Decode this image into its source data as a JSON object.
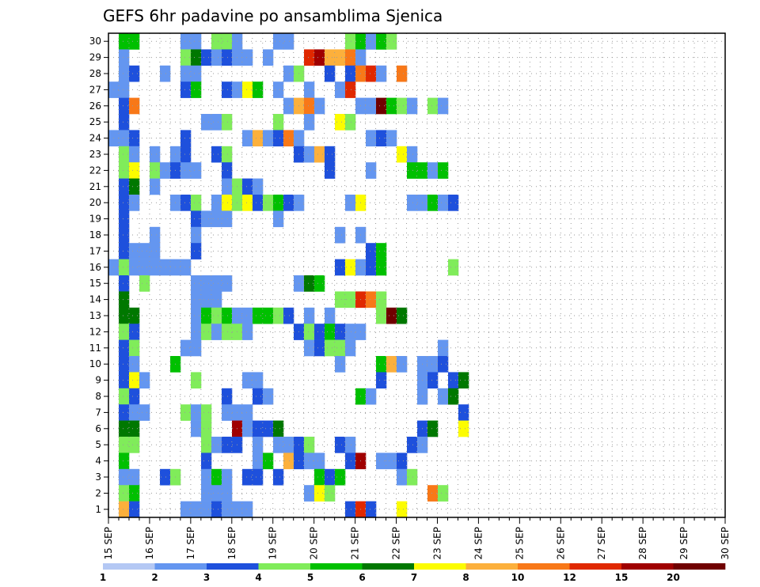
{
  "chart_data": {
    "type": "heatmap",
    "title": "GEFS 6hr padavine po ansamblima Sjenica",
    "xlabel": "",
    "ylabel": "",
    "x_tick_labels": [
      "15 SEP",
      "16 SEP",
      "17 SEP",
      "18 SEP",
      "19 SEP",
      "20 SEP",
      "21 SEP",
      "22 SEP",
      "23 SEP",
      "24 SEP",
      "25 SEP",
      "26 SEP",
      "27 SEP",
      "28 SEP",
      "29 SEP",
      "30 SEP"
    ],
    "y_tick_labels": [
      "1",
      "2",
      "3",
      "4",
      "5",
      "6",
      "7",
      "8",
      "9",
      "10",
      "11",
      "12",
      "13",
      "14",
      "15",
      "16",
      "17",
      "18",
      "19",
      "20",
      "21",
      "22",
      "23",
      "24",
      "25",
      "26",
      "27",
      "28",
      "29",
      "30"
    ],
    "xlim": [
      0,
      60
    ],
    "ylim": [
      0.5,
      30.5
    ],
    "grid": true,
    "colorbar": {
      "levels": [
        "1",
        "2",
        "3",
        "4",
        "5",
        "6",
        "7",
        "8",
        "10",
        "12",
        "15",
        "20"
      ],
      "colors": [
        "#b4c8f4",
        "#6496f0",
        "#1e50dc",
        "#80ec5a",
        "#00c000",
        "#007800",
        "#fcfc00",
        "#fcb03c",
        "#f87818",
        "#e02800",
        "#a00000",
        "#700000"
      ]
    },
    "value_unit": "color class index (0=1-2 ... 11=>20)",
    "cells": [
      [
        1,
        30,
        4
      ],
      [
        2,
        30,
        4
      ],
      [
        7,
        30,
        1
      ],
      [
        8,
        30,
        1
      ],
      [
        10,
        30,
        3
      ],
      [
        11,
        30,
        3
      ],
      [
        12,
        30,
        1
      ],
      [
        16,
        30,
        1
      ],
      [
        17,
        30,
        1
      ],
      [
        23,
        30,
        3
      ],
      [
        24,
        30,
        4
      ],
      [
        25,
        30,
        1
      ],
      [
        26,
        30,
        4
      ],
      [
        27,
        30,
        3
      ],
      [
        1,
        29,
        1
      ],
      [
        7,
        29,
        3
      ],
      [
        8,
        29,
        5
      ],
      [
        9,
        29,
        2
      ],
      [
        10,
        29,
        1
      ],
      [
        11,
        29,
        2
      ],
      [
        12,
        29,
        1
      ],
      [
        13,
        29,
        1
      ],
      [
        15,
        29,
        1
      ],
      [
        19,
        29,
        9
      ],
      [
        20,
        29,
        10
      ],
      [
        21,
        29,
        7
      ],
      [
        22,
        29,
        7
      ],
      [
        23,
        29,
        8
      ],
      [
        24,
        29,
        1
      ],
      [
        1,
        28,
        1
      ],
      [
        2,
        28,
        2
      ],
      [
        5,
        28,
        1
      ],
      [
        7,
        28,
        1
      ],
      [
        8,
        28,
        1
      ],
      [
        17,
        28,
        1
      ],
      [
        18,
        28,
        3
      ],
      [
        21,
        28,
        2
      ],
      [
        23,
        28,
        2
      ],
      [
        24,
        28,
        8
      ],
      [
        25,
        28,
        9
      ],
      [
        26,
        28,
        1
      ],
      [
        28,
        28,
        8
      ],
      [
        0,
        27,
        1
      ],
      [
        1,
        27,
        1
      ],
      [
        7,
        27,
        2
      ],
      [
        8,
        27,
        4
      ],
      [
        11,
        27,
        2
      ],
      [
        12,
        27,
        1
      ],
      [
        13,
        27,
        6
      ],
      [
        14,
        27,
        4
      ],
      [
        16,
        27,
        1
      ],
      [
        19,
        27,
        1
      ],
      [
        22,
        27,
        1
      ],
      [
        23,
        27,
        9
      ],
      [
        1,
        26,
        2
      ],
      [
        2,
        26,
        8
      ],
      [
        17,
        26,
        1
      ],
      [
        18,
        26,
        7
      ],
      [
        19,
        26,
        8
      ],
      [
        20,
        26,
        1
      ],
      [
        24,
        26,
        1
      ],
      [
        25,
        26,
        1
      ],
      [
        26,
        26,
        11
      ],
      [
        27,
        26,
        4
      ],
      [
        28,
        26,
        3
      ],
      [
        29,
        26,
        1
      ],
      [
        31,
        26,
        3
      ],
      [
        32,
        26,
        1
      ],
      [
        1,
        25,
        2
      ],
      [
        9,
        25,
        1
      ],
      [
        10,
        25,
        1
      ],
      [
        11,
        25,
        3
      ],
      [
        16,
        25,
        3
      ],
      [
        19,
        25,
        1
      ],
      [
        22,
        25,
        6
      ],
      [
        23,
        25,
        3
      ],
      [
        0,
        24,
        1
      ],
      [
        1,
        24,
        1
      ],
      [
        2,
        24,
        2
      ],
      [
        7,
        24,
        2
      ],
      [
        13,
        24,
        1
      ],
      [
        14,
        24,
        7
      ],
      [
        15,
        24,
        1
      ],
      [
        16,
        24,
        2
      ],
      [
        17,
        24,
        8
      ],
      [
        18,
        24,
        1
      ],
      [
        25,
        24,
        1
      ],
      [
        26,
        24,
        2
      ],
      [
        27,
        24,
        1
      ],
      [
        1,
        23,
        3
      ],
      [
        2,
        23,
        1
      ],
      [
        4,
        23,
        1
      ],
      [
        6,
        23,
        1
      ],
      [
        7,
        23,
        2
      ],
      [
        10,
        23,
        2
      ],
      [
        11,
        23,
        3
      ],
      [
        18,
        23,
        2
      ],
      [
        19,
        23,
        1
      ],
      [
        20,
        23,
        7
      ],
      [
        21,
        23,
        2
      ],
      [
        28,
        23,
        6
      ],
      [
        29,
        23,
        1
      ],
      [
        1,
        22,
        3
      ],
      [
        2,
        22,
        6
      ],
      [
        4,
        22,
        3
      ],
      [
        5,
        22,
        1
      ],
      [
        6,
        22,
        2
      ],
      [
        7,
        22,
        1
      ],
      [
        8,
        22,
        1
      ],
      [
        11,
        22,
        2
      ],
      [
        21,
        22,
        2
      ],
      [
        25,
        22,
        1
      ],
      [
        29,
        22,
        4
      ],
      [
        30,
        22,
        4
      ],
      [
        31,
        22,
        1
      ],
      [
        32,
        22,
        4
      ],
      [
        1,
        21,
        2
      ],
      [
        2,
        21,
        5
      ],
      [
        4,
        21,
        1
      ],
      [
        11,
        21,
        1
      ],
      [
        12,
        21,
        3
      ],
      [
        13,
        21,
        2
      ],
      [
        14,
        21,
        1
      ],
      [
        1,
        20,
        2
      ],
      [
        2,
        20,
        1
      ],
      [
        6,
        20,
        1
      ],
      [
        7,
        20,
        2
      ],
      [
        8,
        20,
        3
      ],
      [
        10,
        20,
        1
      ],
      [
        11,
        20,
        6
      ],
      [
        12,
        20,
        3
      ],
      [
        13,
        20,
        6
      ],
      [
        14,
        20,
        2
      ],
      [
        15,
        20,
        3
      ],
      [
        16,
        20,
        4
      ],
      [
        17,
        20,
        2
      ],
      [
        18,
        20,
        1
      ],
      [
        23,
        20,
        1
      ],
      [
        24,
        20,
        6
      ],
      [
        29,
        20,
        1
      ],
      [
        30,
        20,
        1
      ],
      [
        31,
        20,
        4
      ],
      [
        32,
        20,
        1
      ],
      [
        33,
        20,
        2
      ],
      [
        1,
        19,
        2
      ],
      [
        8,
        19,
        2
      ],
      [
        9,
        19,
        1
      ],
      [
        10,
        19,
        1
      ],
      [
        11,
        19,
        1
      ],
      [
        16,
        19,
        1
      ],
      [
        1,
        18,
        2
      ],
      [
        4,
        18,
        1
      ],
      [
        8,
        18,
        1
      ],
      [
        22,
        18,
        1
      ],
      [
        24,
        18,
        1
      ],
      [
        1,
        17,
        2
      ],
      [
        2,
        17,
        1
      ],
      [
        3,
        17,
        1
      ],
      [
        4,
        17,
        1
      ],
      [
        8,
        17,
        2
      ],
      [
        25,
        17,
        2
      ],
      [
        26,
        17,
        4
      ],
      [
        0,
        16,
        1
      ],
      [
        1,
        16,
        3
      ],
      [
        2,
        16,
        1
      ],
      [
        3,
        16,
        1
      ],
      [
        4,
        16,
        1
      ],
      [
        5,
        16,
        1
      ],
      [
        6,
        16,
        1
      ],
      [
        7,
        16,
        1
      ],
      [
        22,
        16,
        2
      ],
      [
        23,
        16,
        6
      ],
      [
        24,
        16,
        1
      ],
      [
        25,
        16,
        2
      ],
      [
        26,
        16,
        4
      ],
      [
        33,
        16,
        3
      ],
      [
        1,
        15,
        2
      ],
      [
        3,
        15,
        3
      ],
      [
        8,
        15,
        1
      ],
      [
        9,
        15,
        1
      ],
      [
        10,
        15,
        1
      ],
      [
        11,
        15,
        1
      ],
      [
        18,
        15,
        1
      ],
      [
        19,
        15,
        5
      ],
      [
        20,
        15,
        4
      ],
      [
        1,
        14,
        5
      ],
      [
        8,
        14,
        1
      ],
      [
        9,
        14,
        1
      ],
      [
        10,
        14,
        1
      ],
      [
        22,
        14,
        3
      ],
      [
        23,
        14,
        3
      ],
      [
        24,
        14,
        9
      ],
      [
        25,
        14,
        8
      ],
      [
        26,
        14,
        3
      ],
      [
        1,
        13,
        5
      ],
      [
        2,
        13,
        5
      ],
      [
        8,
        13,
        1
      ],
      [
        9,
        13,
        4
      ],
      [
        10,
        13,
        3
      ],
      [
        11,
        13,
        4
      ],
      [
        12,
        13,
        1
      ],
      [
        13,
        13,
        1
      ],
      [
        14,
        13,
        4
      ],
      [
        15,
        13,
        4
      ],
      [
        16,
        13,
        3
      ],
      [
        17,
        13,
        2
      ],
      [
        19,
        13,
        1
      ],
      [
        21,
        13,
        1
      ],
      [
        26,
        13,
        3
      ],
      [
        27,
        13,
        11
      ],
      [
        28,
        13,
        5
      ],
      [
        1,
        12,
        3
      ],
      [
        2,
        12,
        2
      ],
      [
        8,
        12,
        1
      ],
      [
        9,
        12,
        3
      ],
      [
        10,
        12,
        1
      ],
      [
        11,
        12,
        3
      ],
      [
        12,
        12,
        3
      ],
      [
        13,
        12,
        1
      ],
      [
        18,
        12,
        2
      ],
      [
        19,
        12,
        3
      ],
      [
        20,
        12,
        2
      ],
      [
        21,
        12,
        4
      ],
      [
        22,
        12,
        2
      ],
      [
        23,
        12,
        1
      ],
      [
        24,
        12,
        1
      ],
      [
        1,
        11,
        2
      ],
      [
        2,
        11,
        3
      ],
      [
        7,
        11,
        1
      ],
      [
        8,
        11,
        1
      ],
      [
        19,
        11,
        1
      ],
      [
        20,
        11,
        2
      ],
      [
        21,
        11,
        3
      ],
      [
        22,
        11,
        3
      ],
      [
        23,
        11,
        1
      ],
      [
        32,
        11,
        1
      ],
      [
        1,
        10,
        2
      ],
      [
        2,
        10,
        1
      ],
      [
        6,
        10,
        4
      ],
      [
        22,
        10,
        1
      ],
      [
        26,
        10,
        4
      ],
      [
        27,
        10,
        7
      ],
      [
        28,
        10,
        1
      ],
      [
        30,
        10,
        1
      ],
      [
        31,
        10,
        1
      ],
      [
        32,
        10,
        2
      ],
      [
        1,
        9,
        2
      ],
      [
        2,
        9,
        6
      ],
      [
        3,
        9,
        1
      ],
      [
        8,
        9,
        3
      ],
      [
        13,
        9,
        1
      ],
      [
        14,
        9,
        1
      ],
      [
        26,
        9,
        2
      ],
      [
        30,
        9,
        1
      ],
      [
        31,
        9,
        2
      ],
      [
        33,
        9,
        2
      ],
      [
        34,
        9,
        5
      ],
      [
        1,
        8,
        3
      ],
      [
        2,
        8,
        2
      ],
      [
        11,
        8,
        2
      ],
      [
        14,
        8,
        2
      ],
      [
        15,
        8,
        1
      ],
      [
        24,
        8,
        4
      ],
      [
        25,
        8,
        1
      ],
      [
        30,
        8,
        1
      ],
      [
        32,
        8,
        1
      ],
      [
        33,
        8,
        5
      ],
      [
        1,
        7,
        2
      ],
      [
        2,
        7,
        1
      ],
      [
        3,
        7,
        1
      ],
      [
        7,
        7,
        3
      ],
      [
        8,
        7,
        1
      ],
      [
        9,
        7,
        3
      ],
      [
        11,
        7,
        1
      ],
      [
        12,
        7,
        1
      ],
      [
        13,
        7,
        1
      ],
      [
        34,
        7,
        2
      ],
      [
        1,
        6,
        5
      ],
      [
        2,
        6,
        5
      ],
      [
        8,
        6,
        1
      ],
      [
        9,
        6,
        3
      ],
      [
        12,
        6,
        10
      ],
      [
        13,
        6,
        1
      ],
      [
        14,
        6,
        2
      ],
      [
        15,
        6,
        2
      ],
      [
        16,
        6,
        5
      ],
      [
        30,
        6,
        2
      ],
      [
        31,
        6,
        5
      ],
      [
        34,
        6,
        6
      ],
      [
        1,
        5,
        3
      ],
      [
        2,
        5,
        3
      ],
      [
        9,
        5,
        3
      ],
      [
        10,
        5,
        1
      ],
      [
        11,
        5,
        2
      ],
      [
        12,
        5,
        2
      ],
      [
        14,
        5,
        1
      ],
      [
        16,
        5,
        1
      ],
      [
        17,
        5,
        1
      ],
      [
        18,
        5,
        2
      ],
      [
        19,
        5,
        3
      ],
      [
        22,
        5,
        2
      ],
      [
        23,
        5,
        1
      ],
      [
        29,
        5,
        2
      ],
      [
        30,
        5,
        1
      ],
      [
        1,
        4,
        4
      ],
      [
        9,
        4,
        2
      ],
      [
        14,
        4,
        1
      ],
      [
        15,
        4,
        4
      ],
      [
        17,
        4,
        7
      ],
      [
        18,
        4,
        2
      ],
      [
        19,
        4,
        1
      ],
      [
        20,
        4,
        1
      ],
      [
        23,
        4,
        2
      ],
      [
        24,
        4,
        10
      ],
      [
        26,
        4,
        1
      ],
      [
        27,
        4,
        1
      ],
      [
        28,
        4,
        2
      ],
      [
        1,
        3,
        1
      ],
      [
        2,
        3,
        1
      ],
      [
        5,
        3,
        2
      ],
      [
        6,
        3,
        3
      ],
      [
        9,
        3,
        1
      ],
      [
        10,
        3,
        4
      ],
      [
        11,
        3,
        1
      ],
      [
        13,
        3,
        2
      ],
      [
        14,
        3,
        2
      ],
      [
        16,
        3,
        2
      ],
      [
        20,
        3,
        4
      ],
      [
        21,
        3,
        2
      ],
      [
        22,
        3,
        4
      ],
      [
        28,
        3,
        1
      ],
      [
        29,
        3,
        3
      ],
      [
        1,
        2,
        3
      ],
      [
        2,
        2,
        4
      ],
      [
        9,
        2,
        1
      ],
      [
        10,
        2,
        1
      ],
      [
        11,
        2,
        1
      ],
      [
        19,
        2,
        1
      ],
      [
        20,
        2,
        6
      ],
      [
        21,
        2,
        3
      ],
      [
        31,
        2,
        8
      ],
      [
        32,
        2,
        3
      ],
      [
        1,
        1,
        7
      ],
      [
        2,
        1,
        2
      ],
      [
        7,
        1,
        1
      ],
      [
        8,
        1,
        1
      ],
      [
        9,
        1,
        1
      ],
      [
        10,
        1,
        2
      ],
      [
        11,
        1,
        1
      ],
      [
        12,
        1,
        1
      ],
      [
        13,
        1,
        1
      ],
      [
        23,
        1,
        2
      ],
      [
        24,
        1,
        9
      ],
      [
        25,
        1,
        2
      ],
      [
        28,
        1,
        6
      ]
    ]
  }
}
